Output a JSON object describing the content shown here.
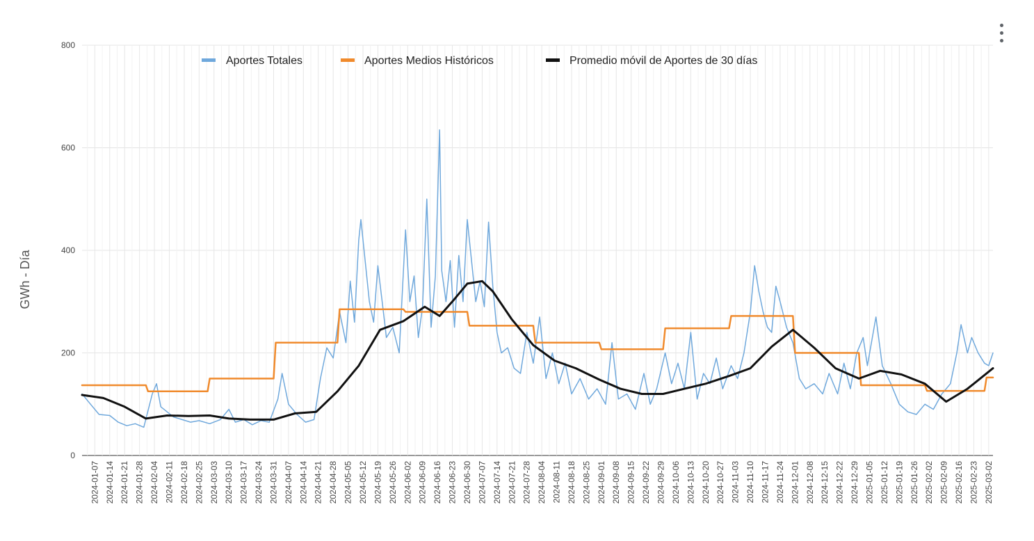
{
  "chart_data": {
    "type": "line",
    "title": "",
    "xlabel": "",
    "ylabel": "GWh - Día",
    "ylim": [
      0,
      800
    ],
    "yticks": [
      0,
      200,
      400,
      600,
      800
    ],
    "grid": true,
    "legend_position": "top",
    "x_start": "2024-01-01",
    "x_end": "2025-03-04",
    "xtick_labels": [
      "2024-01-07",
      "2024-01-14",
      "2024-01-21",
      "2024-01-28",
      "2024-02-04",
      "2024-02-11",
      "2024-02-18",
      "2024-02-25",
      "2024-03-03",
      "2024-03-10",
      "2024-03-17",
      "2024-03-24",
      "2024-03-31",
      "2024-04-07",
      "2024-04-14",
      "2024-04-21",
      "2024-04-28",
      "2024-05-05",
      "2024-05-12",
      "2024-05-19",
      "2024-05-26",
      "2024-06-02",
      "2024-06-09",
      "2024-06-16",
      "2024-06-23",
      "2024-06-30",
      "2024-07-07",
      "2024-07-14",
      "2024-07-21",
      "2024-07-28",
      "2024-08-04",
      "2024-08-11",
      "2024-08-18",
      "2024-08-25",
      "2024-09-01",
      "2024-09-08",
      "2024-09-15",
      "2024-09-22",
      "2024-09-29",
      "2024-10-06",
      "2024-10-13",
      "2024-10-20",
      "2024-10-27",
      "2024-11-03",
      "2024-11-10",
      "2024-11-17",
      "2024-11-24",
      "2024-12-01",
      "2024-12-08",
      "2024-12-15",
      "2024-12-22",
      "2024-12-29",
      "2025-01-05",
      "2025-01-12",
      "2025-01-19",
      "2025-01-26",
      "2025-02-02",
      "2025-02-09",
      "2025-02-16",
      "2025-02-23",
      "2025-03-02"
    ],
    "series": [
      {
        "name": "Aportes Totales",
        "color": "#6fa8dc",
        "points": [
          [
            "2024-01-01",
            120
          ],
          [
            "2024-01-05",
            100
          ],
          [
            "2024-01-09",
            80
          ],
          [
            "2024-01-14",
            78
          ],
          [
            "2024-01-18",
            65
          ],
          [
            "2024-01-22",
            58
          ],
          [
            "2024-01-26",
            62
          ],
          [
            "2024-01-30",
            55
          ],
          [
            "2024-02-03",
            120
          ],
          [
            "2024-02-05",
            140
          ],
          [
            "2024-02-07",
            95
          ],
          [
            "2024-02-10",
            85
          ],
          [
            "2024-02-13",
            75
          ],
          [
            "2024-02-17",
            70
          ],
          [
            "2024-02-21",
            65
          ],
          [
            "2024-02-25",
            68
          ],
          [
            "2024-03-01",
            62
          ],
          [
            "2024-03-06",
            70
          ],
          [
            "2024-03-10",
            90
          ],
          [
            "2024-03-13",
            65
          ],
          [
            "2024-03-17",
            70
          ],
          [
            "2024-03-21",
            60
          ],
          [
            "2024-03-25",
            68
          ],
          [
            "2024-03-29",
            65
          ],
          [
            "2024-04-02",
            110
          ],
          [
            "2024-04-04",
            160
          ],
          [
            "2024-04-07",
            100
          ],
          [
            "2024-04-11",
            80
          ],
          [
            "2024-04-15",
            65
          ],
          [
            "2024-04-19",
            70
          ],
          [
            "2024-04-22",
            150
          ],
          [
            "2024-04-25",
            210
          ],
          [
            "2024-04-28",
            190
          ],
          [
            "2024-05-01",
            280
          ],
          [
            "2024-05-04",
            220
          ],
          [
            "2024-05-06",
            340
          ],
          [
            "2024-05-08",
            260
          ],
          [
            "2024-05-10",
            420
          ],
          [
            "2024-05-11",
            460
          ],
          [
            "2024-05-13",
            380
          ],
          [
            "2024-05-15",
            300
          ],
          [
            "2024-05-17",
            260
          ],
          [
            "2024-05-19",
            370
          ],
          [
            "2024-05-21",
            300
          ],
          [
            "2024-05-23",
            230
          ],
          [
            "2024-05-26",
            250
          ],
          [
            "2024-05-29",
            200
          ],
          [
            "2024-06-01",
            440
          ],
          [
            "2024-06-03",
            300
          ],
          [
            "2024-06-05",
            350
          ],
          [
            "2024-06-07",
            230
          ],
          [
            "2024-06-09",
            290
          ],
          [
            "2024-06-11",
            500
          ],
          [
            "2024-06-13",
            250
          ],
          [
            "2024-06-15",
            350
          ],
          [
            "2024-06-17",
            635
          ],
          [
            "2024-06-18",
            360
          ],
          [
            "2024-06-20",
            300
          ],
          [
            "2024-06-22",
            380
          ],
          [
            "2024-06-24",
            250
          ],
          [
            "2024-06-26",
            390
          ],
          [
            "2024-06-28",
            300
          ],
          [
            "2024-06-30",
            460
          ],
          [
            "2024-07-02",
            380
          ],
          [
            "2024-07-04",
            300
          ],
          [
            "2024-07-06",
            340
          ],
          [
            "2024-07-08",
            290
          ],
          [
            "2024-07-10",
            455
          ],
          [
            "2024-07-12",
            330
          ],
          [
            "2024-07-14",
            240
          ],
          [
            "2024-07-16",
            200
          ],
          [
            "2024-07-19",
            210
          ],
          [
            "2024-07-22",
            170
          ],
          [
            "2024-07-25",
            160
          ],
          [
            "2024-07-28",
            240
          ],
          [
            "2024-07-31",
            180
          ],
          [
            "2024-08-03",
            270
          ],
          [
            "2024-08-06",
            150
          ],
          [
            "2024-08-09",
            200
          ],
          [
            "2024-08-12",
            140
          ],
          [
            "2024-08-15",
            180
          ],
          [
            "2024-08-18",
            120
          ],
          [
            "2024-08-22",
            150
          ],
          [
            "2024-08-26",
            110
          ],
          [
            "2024-08-30",
            130
          ],
          [
            "2024-09-03",
            100
          ],
          [
            "2024-09-06",
            220
          ],
          [
            "2024-09-09",
            110
          ],
          [
            "2024-09-13",
            120
          ],
          [
            "2024-09-17",
            90
          ],
          [
            "2024-09-21",
            160
          ],
          [
            "2024-09-24",
            100
          ],
          [
            "2024-09-27",
            130
          ],
          [
            "2024-10-01",
            200
          ],
          [
            "2024-10-04",
            140
          ],
          [
            "2024-10-07",
            180
          ],
          [
            "2024-10-10",
            130
          ],
          [
            "2024-10-13",
            240
          ],
          [
            "2024-10-16",
            110
          ],
          [
            "2024-10-19",
            160
          ],
          [
            "2024-10-22",
            140
          ],
          [
            "2024-10-25",
            190
          ],
          [
            "2024-10-28",
            130
          ],
          [
            "2024-11-01",
            175
          ],
          [
            "2024-11-04",
            150
          ],
          [
            "2024-11-07",
            200
          ],
          [
            "2024-11-10",
            280
          ],
          [
            "2024-11-12",
            370
          ],
          [
            "2024-11-14",
            320
          ],
          [
            "2024-11-16",
            280
          ],
          [
            "2024-11-18",
            250
          ],
          [
            "2024-11-20",
            240
          ],
          [
            "2024-11-22",
            330
          ],
          [
            "2024-11-24",
            300
          ],
          [
            "2024-11-27",
            250
          ],
          [
            "2024-11-30",
            220
          ],
          [
            "2024-12-03",
            150
          ],
          [
            "2024-12-06",
            130
          ],
          [
            "2024-12-10",
            140
          ],
          [
            "2024-12-14",
            120
          ],
          [
            "2024-12-17",
            160
          ],
          [
            "2024-12-21",
            120
          ],
          [
            "2024-12-24",
            180
          ],
          [
            "2024-12-27",
            130
          ],
          [
            "2024-12-30",
            200
          ],
          [
            "2025-01-02",
            230
          ],
          [
            "2025-01-04",
            175
          ],
          [
            "2025-01-08",
            270
          ],
          [
            "2025-01-11",
            175
          ],
          [
            "2025-01-15",
            140
          ],
          [
            "2025-01-19",
            100
          ],
          [
            "2025-01-23",
            85
          ],
          [
            "2025-01-27",
            80
          ],
          [
            "2025-01-31",
            100
          ],
          [
            "2025-02-04",
            90
          ],
          [
            "2025-02-08",
            120
          ],
          [
            "2025-02-12",
            140
          ],
          [
            "2025-02-15",
            200
          ],
          [
            "2025-02-17",
            255
          ],
          [
            "2025-02-20",
            200
          ],
          [
            "2025-02-22",
            230
          ],
          [
            "2025-02-25",
            200
          ],
          [
            "2025-02-28",
            180
          ],
          [
            "2025-03-02",
            175
          ],
          [
            "2025-03-04",
            200
          ]
        ]
      },
      {
        "name": "Aportes Medios Históricos",
        "color": "#f08a2c",
        "points": [
          [
            "2024-01-01",
            137
          ],
          [
            "2024-01-31",
            137
          ],
          [
            "2024-02-01",
            125
          ],
          [
            "2024-02-29",
            125
          ],
          [
            "2024-03-01",
            150
          ],
          [
            "2024-03-31",
            150
          ],
          [
            "2024-04-01",
            220
          ],
          [
            "2024-04-30",
            220
          ],
          [
            "2024-05-01",
            285
          ],
          [
            "2024-05-31",
            285
          ],
          [
            "2024-06-01",
            280
          ],
          [
            "2024-06-30",
            280
          ],
          [
            "2024-07-01",
            253
          ],
          [
            "2024-07-31",
            253
          ],
          [
            "2024-08-01",
            220
          ],
          [
            "2024-08-31",
            220
          ],
          [
            "2024-09-01",
            207
          ],
          [
            "2024-09-30",
            207
          ],
          [
            "2024-10-01",
            248
          ],
          [
            "2024-10-31",
            248
          ],
          [
            "2024-11-01",
            272
          ],
          [
            "2024-11-30",
            272
          ],
          [
            "2024-12-01",
            200
          ],
          [
            "2024-12-31",
            200
          ],
          [
            "2025-01-01",
            137
          ],
          [
            "2025-01-31",
            137
          ],
          [
            "2025-02-01",
            126
          ],
          [
            "2025-02-28",
            126
          ],
          [
            "2025-03-01",
            152
          ],
          [
            "2025-03-04",
            152
          ]
        ]
      },
      {
        "name": "Promedio móvil de Aportes de 30 días",
        "color": "#111111",
        "points": [
          [
            "2024-01-01",
            118
          ],
          [
            "2024-01-11",
            112
          ],
          [
            "2024-01-21",
            95
          ],
          [
            "2024-01-31",
            72
          ],
          [
            "2024-02-10",
            78
          ],
          [
            "2024-02-20",
            77
          ],
          [
            "2024-03-01",
            78
          ],
          [
            "2024-03-10",
            72
          ],
          [
            "2024-03-20",
            70
          ],
          [
            "2024-03-31",
            70
          ],
          [
            "2024-04-10",
            82
          ],
          [
            "2024-04-20",
            85
          ],
          [
            "2024-04-30",
            125
          ],
          [
            "2024-05-10",
            175
          ],
          [
            "2024-05-20",
            245
          ],
          [
            "2024-05-31",
            262
          ],
          [
            "2024-06-10",
            290
          ],
          [
            "2024-06-17",
            272
          ],
          [
            "2024-06-24",
            305
          ],
          [
            "2024-06-30",
            335
          ],
          [
            "2024-07-07",
            340
          ],
          [
            "2024-07-12",
            320
          ],
          [
            "2024-07-21",
            265
          ],
          [
            "2024-07-31",
            215
          ],
          [
            "2024-08-10",
            185
          ],
          [
            "2024-08-20",
            170
          ],
          [
            "2024-08-31",
            148
          ],
          [
            "2024-09-10",
            130
          ],
          [
            "2024-09-20",
            120
          ],
          [
            "2024-09-30",
            120
          ],
          [
            "2024-10-10",
            130
          ],
          [
            "2024-10-20",
            140
          ],
          [
            "2024-10-31",
            155
          ],
          [
            "2024-11-10",
            170
          ],
          [
            "2024-11-20",
            212
          ],
          [
            "2024-11-30",
            245
          ],
          [
            "2024-12-10",
            210
          ],
          [
            "2024-12-20",
            170
          ],
          [
            "2024-12-31",
            150
          ],
          [
            "2025-01-10",
            165
          ],
          [
            "2025-01-20",
            158
          ],
          [
            "2025-01-31",
            140
          ],
          [
            "2025-02-10",
            105
          ],
          [
            "2025-02-20",
            130
          ],
          [
            "2025-03-04",
            170
          ]
        ]
      }
    ]
  }
}
